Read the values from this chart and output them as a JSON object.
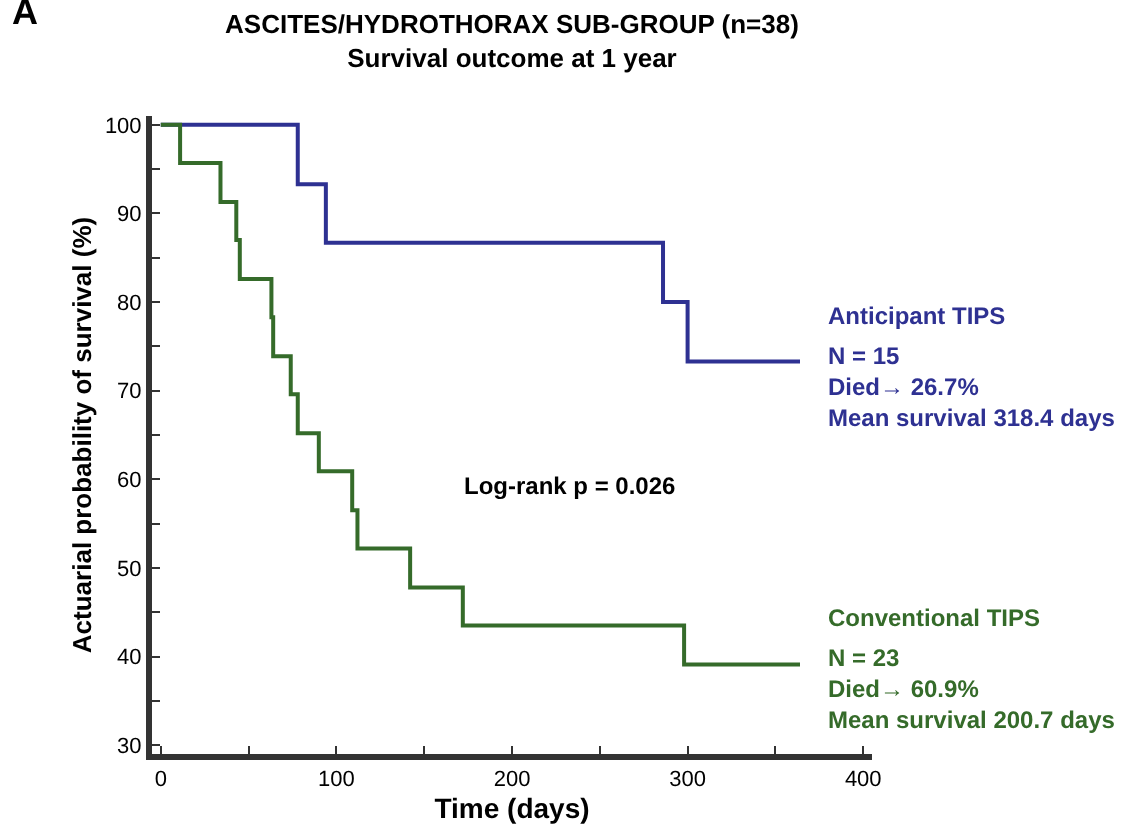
{
  "chart_data": {
    "type": "step",
    "title": "ASCITES/HYDROTHORAX SUB-GROUP (n=38)",
    "subtitle": "Survival outcome at 1 year",
    "xlabel": "Time (days)",
    "ylabel": "Actuarial probability of survival (%)",
    "xlim": [
      -5,
      405
    ],
    "ylim": [
      29,
      101
    ],
    "xticks": [
      0,
      {
        "value": 50,
        "label": null
      },
      100,
      {
        "value": 150,
        "label": null
      },
      200,
      {
        "value": 250,
        "label": null
      },
      300,
      {
        "value": 350,
        "label": null
      },
      400
    ],
    "yticks": [
      30,
      {
        "value": 35,
        "label": null
      },
      40,
      {
        "value": 45,
        "label": null
      },
      50,
      {
        "value": 55,
        "label": null
      },
      60,
      {
        "value": 65,
        "label": null
      },
      70,
      {
        "value": 75,
        "label": null
      },
      80,
      {
        "value": 85,
        "label": null
      },
      90,
      {
        "value": 95,
        "label": null
      },
      100
    ],
    "grid": false,
    "legend": false,
    "line_style": "solid",
    "marker": "none",
    "series": [
      {
        "name": "Anticipant TIPS",
        "color": "#2e3192",
        "x": [
          0,
          78,
          94,
          286,
          300,
          364
        ],
        "values": [
          100,
          93.3,
          86.7,
          80,
          73.3,
          73.3
        ]
      },
      {
        "name": "Conventional TIPS",
        "color": "#356b2a",
        "x": [
          0,
          11,
          34,
          43,
          45,
          63,
          64,
          74,
          78,
          90,
          109,
          112,
          142,
          172,
          298,
          364
        ],
        "values": [
          100,
          95.7,
          91.3,
          87,
          82.6,
          78.3,
          73.9,
          69.6,
          65.2,
          60.9,
          56.5,
          52.2,
          47.8,
          43.5,
          39.1,
          39.1
        ]
      }
    ],
    "annotations": [
      "A",
      "N = 15\nDied→ 26.7%\nMean survival 318.4 days",
      "N = 23\nDied→ 60.9%\nMean survival 200.7 days",
      "Log-rank p = 0.026"
    ]
  }
}
